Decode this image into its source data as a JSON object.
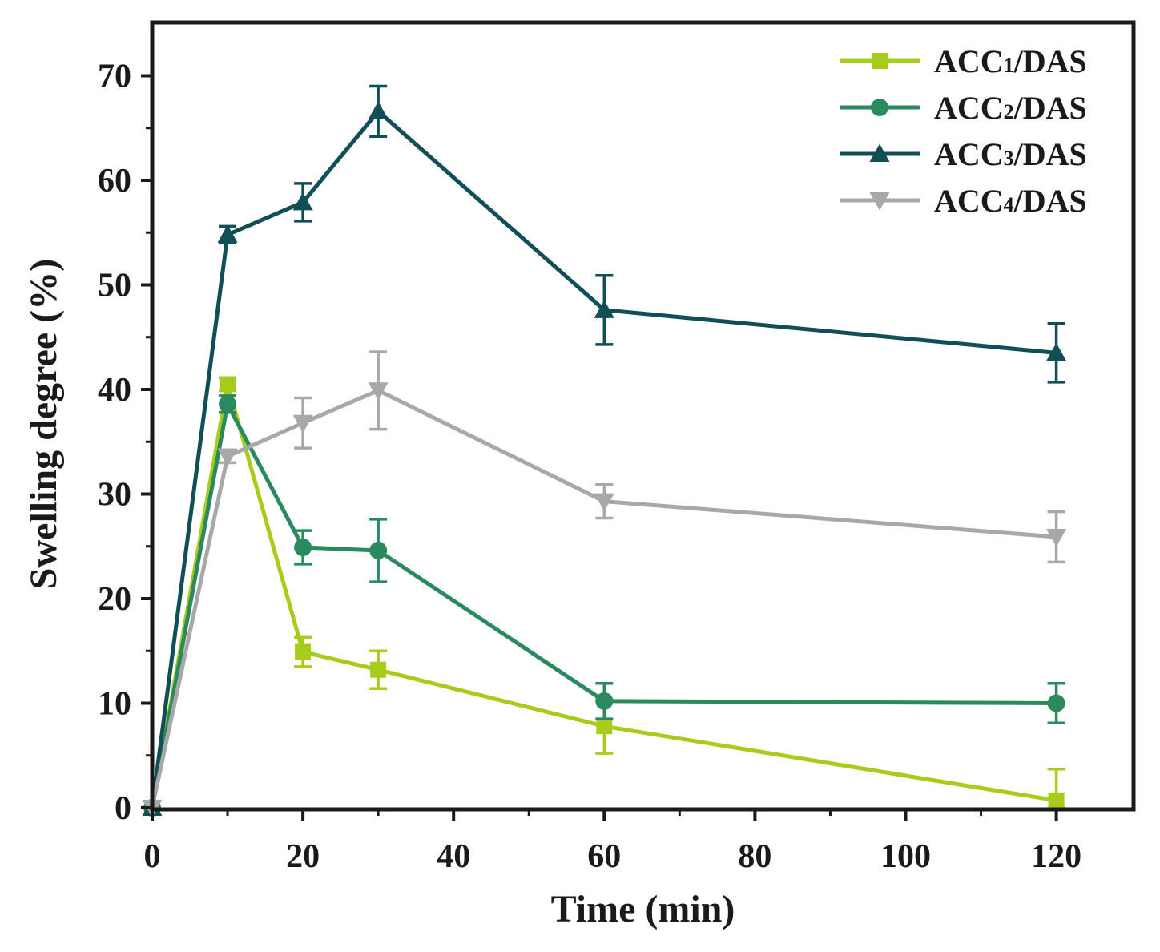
{
  "chart_data": {
    "type": "line",
    "title": "",
    "xlabel": "Time (min)",
    "ylabel": "Swelling degree (%)",
    "xlim": [
      0,
      130
    ],
    "ylim": [
      0,
      70
    ],
    "xticks": [
      0,
      20,
      40,
      60,
      80,
      100,
      120
    ],
    "yticks": [
      0,
      10,
      20,
      30,
      40,
      50,
      60,
      70
    ],
    "xtick_labels": [
      "0",
      "20",
      "40",
      "60",
      "80",
      "100",
      "120"
    ],
    "ytick_labels": [
      "0",
      "10",
      "20",
      "30",
      "40",
      "50",
      "60",
      "70"
    ],
    "grid": false,
    "legend_position": "top-right",
    "x": [
      0,
      10,
      20,
      30,
      60,
      120
    ],
    "series": [
      {
        "name_prefix": "ACC",
        "name_sub": "1",
        "name_suffix": "/DAS",
        "color": "#a8cc1c",
        "marker": "square",
        "values": [
          0,
          40.5,
          14.9,
          13.2,
          7.8,
          0.7
        ],
        "errors": [
          0,
          0.6,
          1.4,
          1.8,
          2.6,
          3.0
        ]
      },
      {
        "name_prefix": "ACC",
        "name_sub": "2",
        "name_suffix": "/DAS",
        "color": "#2a8a5e",
        "marker": "circle",
        "values": [
          0,
          38.6,
          24.9,
          24.6,
          10.2,
          10.0
        ],
        "errors": [
          0,
          0.8,
          1.6,
          3.0,
          1.7,
          1.9
        ]
      },
      {
        "name_prefix": "ACC",
        "name_sub": "3",
        "name_suffix": "/DAS",
        "color": "#124e56",
        "marker": "triangle-up",
        "values": [
          0,
          54.8,
          57.9,
          66.6,
          47.6,
          43.5
        ],
        "errors": [
          0,
          0.8,
          1.8,
          2.4,
          3.3,
          2.8
        ]
      },
      {
        "name_prefix": "ACC",
        "name_sub": "4",
        "name_suffix": "/DAS",
        "color": "#a8a8a8",
        "marker": "triangle-down",
        "values": [
          0,
          33.6,
          36.8,
          39.9,
          29.3,
          25.9
        ],
        "errors": [
          0,
          0.6,
          2.4,
          3.7,
          1.6,
          2.4
        ]
      }
    ]
  }
}
